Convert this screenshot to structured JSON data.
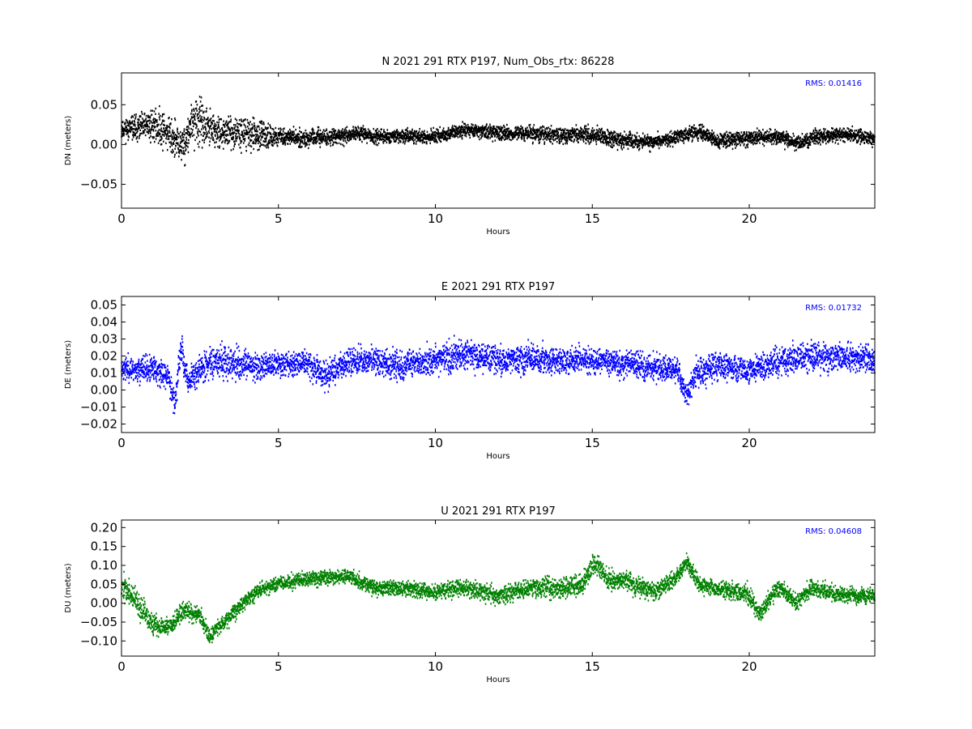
{
  "chart_data": [
    {
      "type": "scatter",
      "title": "N 2021 291 RTX  P197, Num_Obs_rtx: 86228",
      "xlabel": "Hours",
      "ylabel": "DN (meters)",
      "xlim": [
        0,
        24
      ],
      "ylim": [
        -0.08,
        0.09
      ],
      "xticks": [
        0,
        5,
        10,
        15,
        20
      ],
      "xtick_labels": [
        "0",
        "5",
        "10",
        "15",
        "20"
      ],
      "yticks": [
        -0.05,
        0.0,
        0.05
      ],
      "ytick_labels": [
        "−0.05",
        "0.00",
        "0.05"
      ],
      "color": "#000000",
      "annotation": "RMS:  0.01416",
      "annotation_color": "#0000ff",
      "grid": false,
      "series": [
        {
          "trend": [
            [
              0,
              0.02
            ],
            [
              0.5,
              0.02
            ],
            [
              1,
              0.025
            ],
            [
              1.5,
              0.015
            ],
            [
              1.8,
              0.0
            ],
            [
              2,
              0.0
            ],
            [
              2.3,
              0.03
            ],
            [
              2.6,
              0.025
            ],
            [
              3,
              0.015
            ],
            [
              3.5,
              0.015
            ],
            [
              4,
              0.015
            ],
            [
              4.5,
              0.01
            ],
            [
              5,
              0.01
            ],
            [
              6,
              0.008
            ],
            [
              7,
              0.01
            ],
            [
              7.5,
              0.015
            ],
            [
              8,
              0.01
            ],
            [
              9,
              0.01
            ],
            [
              10,
              0.01
            ],
            [
              11,
              0.018
            ],
            [
              12,
              0.015
            ],
            [
              13,
              0.013
            ],
            [
              14,
              0.012
            ],
            [
              15,
              0.012
            ],
            [
              16,
              0.005
            ],
            [
              17,
              0.003
            ],
            [
              18,
              0.012
            ],
            [
              18.5,
              0.015
            ],
            [
              19,
              0.005
            ],
            [
              20,
              0.008
            ],
            [
              21,
              0.01
            ],
            [
              21.6,
              0.0
            ],
            [
              22,
              0.008
            ],
            [
              23,
              0.012
            ],
            [
              24,
              0.008
            ]
          ],
          "spread": [
            [
              0,
              0.012
            ],
            [
              0.8,
              0.02
            ],
            [
              2.5,
              0.03
            ],
            [
              3.2,
              0.018
            ],
            [
              4.2,
              0.02
            ],
            [
              5,
              0.011
            ],
            [
              8,
              0.009
            ],
            [
              12,
              0.009
            ],
            [
              15,
              0.011
            ],
            [
              18,
              0.009
            ],
            [
              20,
              0.01
            ],
            [
              24,
              0.009
            ]
          ]
        }
      ]
    },
    {
      "type": "scatter",
      "title": "E 2021 291 RTX  P197",
      "xlabel": "Hours",
      "ylabel": "DE (meters)",
      "xlim": [
        0,
        24
      ],
      "ylim": [
        -0.025,
        0.055
      ],
      "xticks": [
        0,
        5,
        10,
        15,
        20
      ],
      "xtick_labels": [
        "0",
        "5",
        "10",
        "15",
        "20"
      ],
      "yticks": [
        -0.02,
        -0.01,
        0.0,
        0.01,
        0.02,
        0.03,
        0.04,
        0.05
      ],
      "ytick_labels": [
        "−0.02",
        "−0.01",
        "0.00",
        "0.01",
        "0.02",
        "0.03",
        "0.04",
        "0.05"
      ],
      "color": "#0000ff",
      "annotation": "RMS:  0.01732",
      "annotation_color": "#0000ff",
      "grid": false,
      "series": [
        {
          "trend": [
            [
              0,
              0.013
            ],
            [
              0.5,
              0.012
            ],
            [
              1,
              0.012
            ],
            [
              1.5,
              0.008
            ],
            [
              1.7,
              -0.008
            ],
            [
              1.9,
              0.025
            ],
            [
              2.1,
              0.005
            ],
            [
              2.5,
              0.012
            ],
            [
              3,
              0.018
            ],
            [
              4,
              0.014
            ],
            [
              5,
              0.015
            ],
            [
              6,
              0.016
            ],
            [
              6.5,
              0.008
            ],
            [
              7,
              0.015
            ],
            [
              8,
              0.018
            ],
            [
              9,
              0.014
            ],
            [
              10,
              0.018
            ],
            [
              11,
              0.022
            ],
            [
              12,
              0.017
            ],
            [
              13,
              0.018
            ],
            [
              14,
              0.017
            ],
            [
              15,
              0.017
            ],
            [
              16,
              0.016
            ],
            [
              17,
              0.013
            ],
            [
              17.7,
              0.012
            ],
            [
              18,
              -0.004
            ],
            [
              18.3,
              0.01
            ],
            [
              19,
              0.015
            ],
            [
              20,
              0.011
            ],
            [
              21,
              0.017
            ],
            [
              22,
              0.02
            ],
            [
              23,
              0.019
            ],
            [
              24,
              0.018
            ]
          ],
          "spread": [
            [
              0,
              0.007
            ],
            [
              3.5,
              0.01
            ],
            [
              5,
              0.008
            ],
            [
              8,
              0.008
            ],
            [
              11,
              0.009
            ],
            [
              15,
              0.008
            ],
            [
              18,
              0.008
            ],
            [
              22,
              0.009
            ],
            [
              24,
              0.008
            ]
          ]
        }
      ]
    },
    {
      "type": "scatter",
      "title": "U 2021 291 RTX  P197",
      "xlabel": "Hours",
      "ylabel": "DU (meters)",
      "xlim": [
        0,
        24
      ],
      "ylim": [
        -0.14,
        0.22
      ],
      "xticks": [
        0,
        5,
        10,
        15,
        20
      ],
      "xtick_labels": [
        "0",
        "5",
        "10",
        "15",
        "20"
      ],
      "yticks": [
        -0.1,
        -0.05,
        0.0,
        0.05,
        0.1,
        0.15,
        0.2
      ],
      "ytick_labels": [
        "−0.10",
        "−0.05",
        "0.00",
        "0.05",
        "0.10",
        "0.15",
        "0.20"
      ],
      "color": "#008000",
      "annotation": "RMS:  0.04608",
      "annotation_color": "#0000ff",
      "grid": false,
      "series": [
        {
          "trend": [
            [
              0,
              0.05
            ],
            [
              0.5,
              0.0
            ],
            [
              1,
              -0.06
            ],
            [
              1.5,
              -0.06
            ],
            [
              2,
              -0.02
            ],
            [
              2.5,
              -0.03
            ],
            [
              2.8,
              -0.09
            ],
            [
              3,
              -0.07
            ],
            [
              3.5,
              -0.03
            ],
            [
              4,
              0.01
            ],
            [
              4.5,
              0.04
            ],
            [
              5,
              0.05
            ],
            [
              6,
              0.065
            ],
            [
              7,
              0.07
            ],
            [
              7.3,
              0.07
            ],
            [
              8,
              0.04
            ],
            [
              9,
              0.04
            ],
            [
              10,
              0.03
            ],
            [
              11,
              0.04
            ],
            [
              12,
              0.02
            ],
            [
              13,
              0.04
            ],
            [
              14,
              0.04
            ],
            [
              14.7,
              0.05
            ],
            [
              15.1,
              0.11
            ],
            [
              15.5,
              0.06
            ],
            [
              16,
              0.06
            ],
            [
              17,
              0.03
            ],
            [
              17.7,
              0.07
            ],
            [
              18,
              0.11
            ],
            [
              18.4,
              0.05
            ],
            [
              19,
              0.04
            ],
            [
              20,
              0.02
            ],
            [
              20.3,
              -0.03
            ],
            [
              20.8,
              0.03
            ],
            [
              21,
              0.04
            ],
            [
              21.5,
              0.0
            ],
            [
              22,
              0.04
            ],
            [
              23,
              0.02
            ],
            [
              24,
              0.02
            ]
          ],
          "spread": [
            [
              0,
              0.035
            ],
            [
              1,
              0.03
            ],
            [
              3,
              0.022
            ],
            [
              5,
              0.02
            ],
            [
              10,
              0.02
            ],
            [
              15,
              0.03
            ],
            [
              18,
              0.022
            ],
            [
              20,
              0.025
            ],
            [
              24,
              0.02
            ]
          ]
        }
      ]
    }
  ]
}
